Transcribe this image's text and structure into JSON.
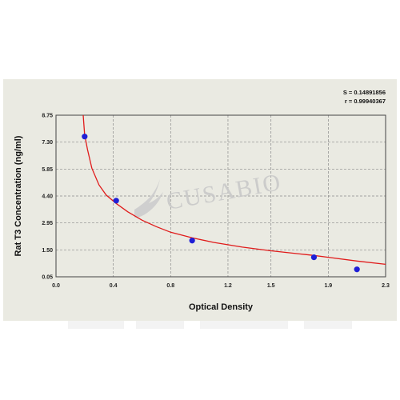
{
  "chart_data": {
    "type": "scatter",
    "xlabel": "Optical Density",
    "ylabel": "Rat T3 Concentration (ng/ml)",
    "xlim": [
      0.0,
      2.3
    ],
    "ylim": [
      0.05,
      8.75
    ],
    "x_ticks": [
      "0.0",
      "0.4",
      "0.8",
      "1.2",
      "1.5",
      "1.9",
      "2.3"
    ],
    "x_tick_values": [
      0.0,
      0.4,
      0.8,
      1.2,
      1.5,
      1.9,
      2.3
    ],
    "y_ticks": [
      "0.05",
      "1.50",
      "2.95",
      "4.40",
      "5.85",
      "7.30",
      "8.75"
    ],
    "y_tick_values": [
      0.05,
      1.5,
      2.95,
      4.4,
      5.85,
      7.3,
      8.75
    ],
    "grid": true,
    "points": {
      "x": [
        0.2,
        0.42,
        0.95,
        1.8,
        2.1
      ],
      "y": [
        7.6,
        4.15,
        2.0,
        1.1,
        0.45
      ]
    },
    "fit_curve": {
      "x": [
        0.19,
        0.2,
        0.22,
        0.25,
        0.3,
        0.35,
        0.42,
        0.5,
        0.6,
        0.7,
        0.8,
        0.95,
        1.1,
        1.3,
        1.5,
        1.7,
        1.8,
        1.9,
        2.1,
        2.3
      ],
      "y": [
        8.75,
        7.7,
        6.9,
        5.9,
        5.0,
        4.45,
        4.0,
        3.55,
        3.1,
        2.75,
        2.45,
        2.15,
        1.9,
        1.65,
        1.45,
        1.28,
        1.2,
        1.1,
        0.9,
        0.72
      ]
    },
    "stats": [
      "S = 0.14891856",
      "r = 0.99940367"
    ],
    "colors": {
      "points": "#1f1fd6",
      "curve": "#e01b1b",
      "grid": "#8a8a8a",
      "background": "#eaeae2"
    }
  },
  "watermark": {
    "text": "CUSABIO"
  }
}
